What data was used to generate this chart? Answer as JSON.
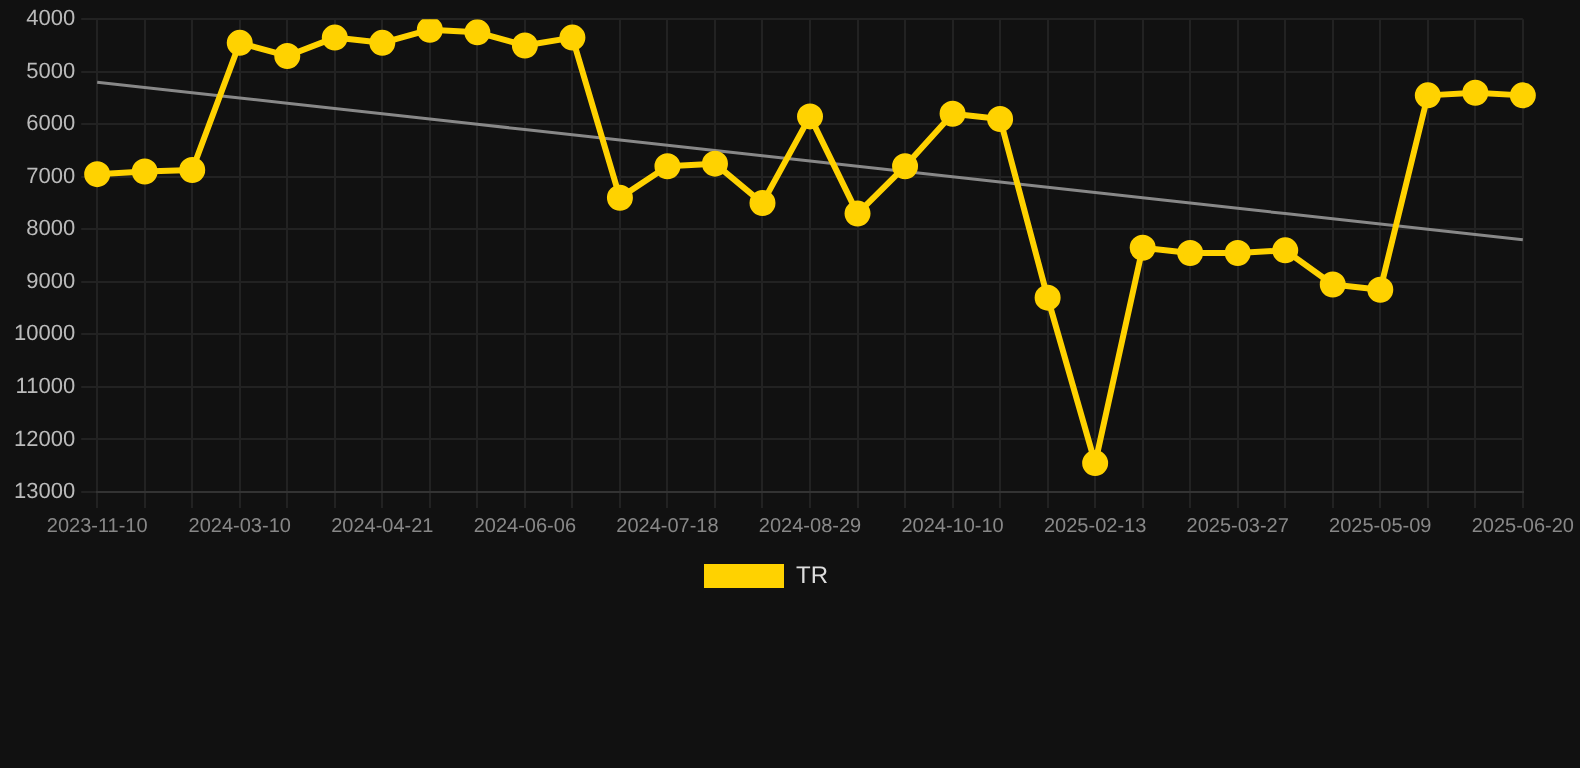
{
  "chart_data": {
    "type": "line",
    "categories": [
      "2023-11-10",
      null,
      null,
      "2024-03-10",
      null,
      null,
      "2024-04-21",
      null,
      null,
      "2024-06-06",
      null,
      null,
      "2024-07-18",
      null,
      null,
      "2024-08-29",
      null,
      null,
      "2024-10-10",
      null,
      null,
      "2025-02-13",
      null,
      null,
      "2025-03-27",
      null,
      null,
      "2025-05-09",
      null,
      null,
      "2025-06-20"
    ],
    "series": [
      {
        "name": "TR",
        "color": "#ffd200",
        "values": [
          6950,
          6900,
          6870,
          4450,
          4700,
          4350,
          4450,
          4200,
          4250,
          4500,
          4350,
          7400,
          6800,
          6750,
          7500,
          5850,
          7700,
          6800,
          5800,
          5900,
          9300,
          12450,
          8350,
          8450,
          8450,
          8400,
          9050,
          9150,
          5450,
          5400,
          5450
        ]
      },
      {
        "type": "line",
        "color": "#888888",
        "marker": "none",
        "values": [
          5200,
          5300,
          5400,
          5500,
          5600,
          5700,
          5800,
          5900,
          6000,
          6100,
          6200,
          6300,
          6400,
          6500,
          6600,
          6700,
          6800,
          6900,
          7000,
          7100,
          7200,
          7300,
          7400,
          7500,
          7600,
          7700,
          7800,
          7900,
          8000,
          8100,
          8200
        ]
      }
    ],
    "ylim": [
      13000,
      4000
    ],
    "yticks": [
      4000,
      5000,
      6000,
      7000,
      8000,
      9000,
      10000,
      11000,
      12000,
      13000
    ],
    "grid": true,
    "legend": "bottom",
    "marker": "circle",
    "line_style": "solid"
  }
}
